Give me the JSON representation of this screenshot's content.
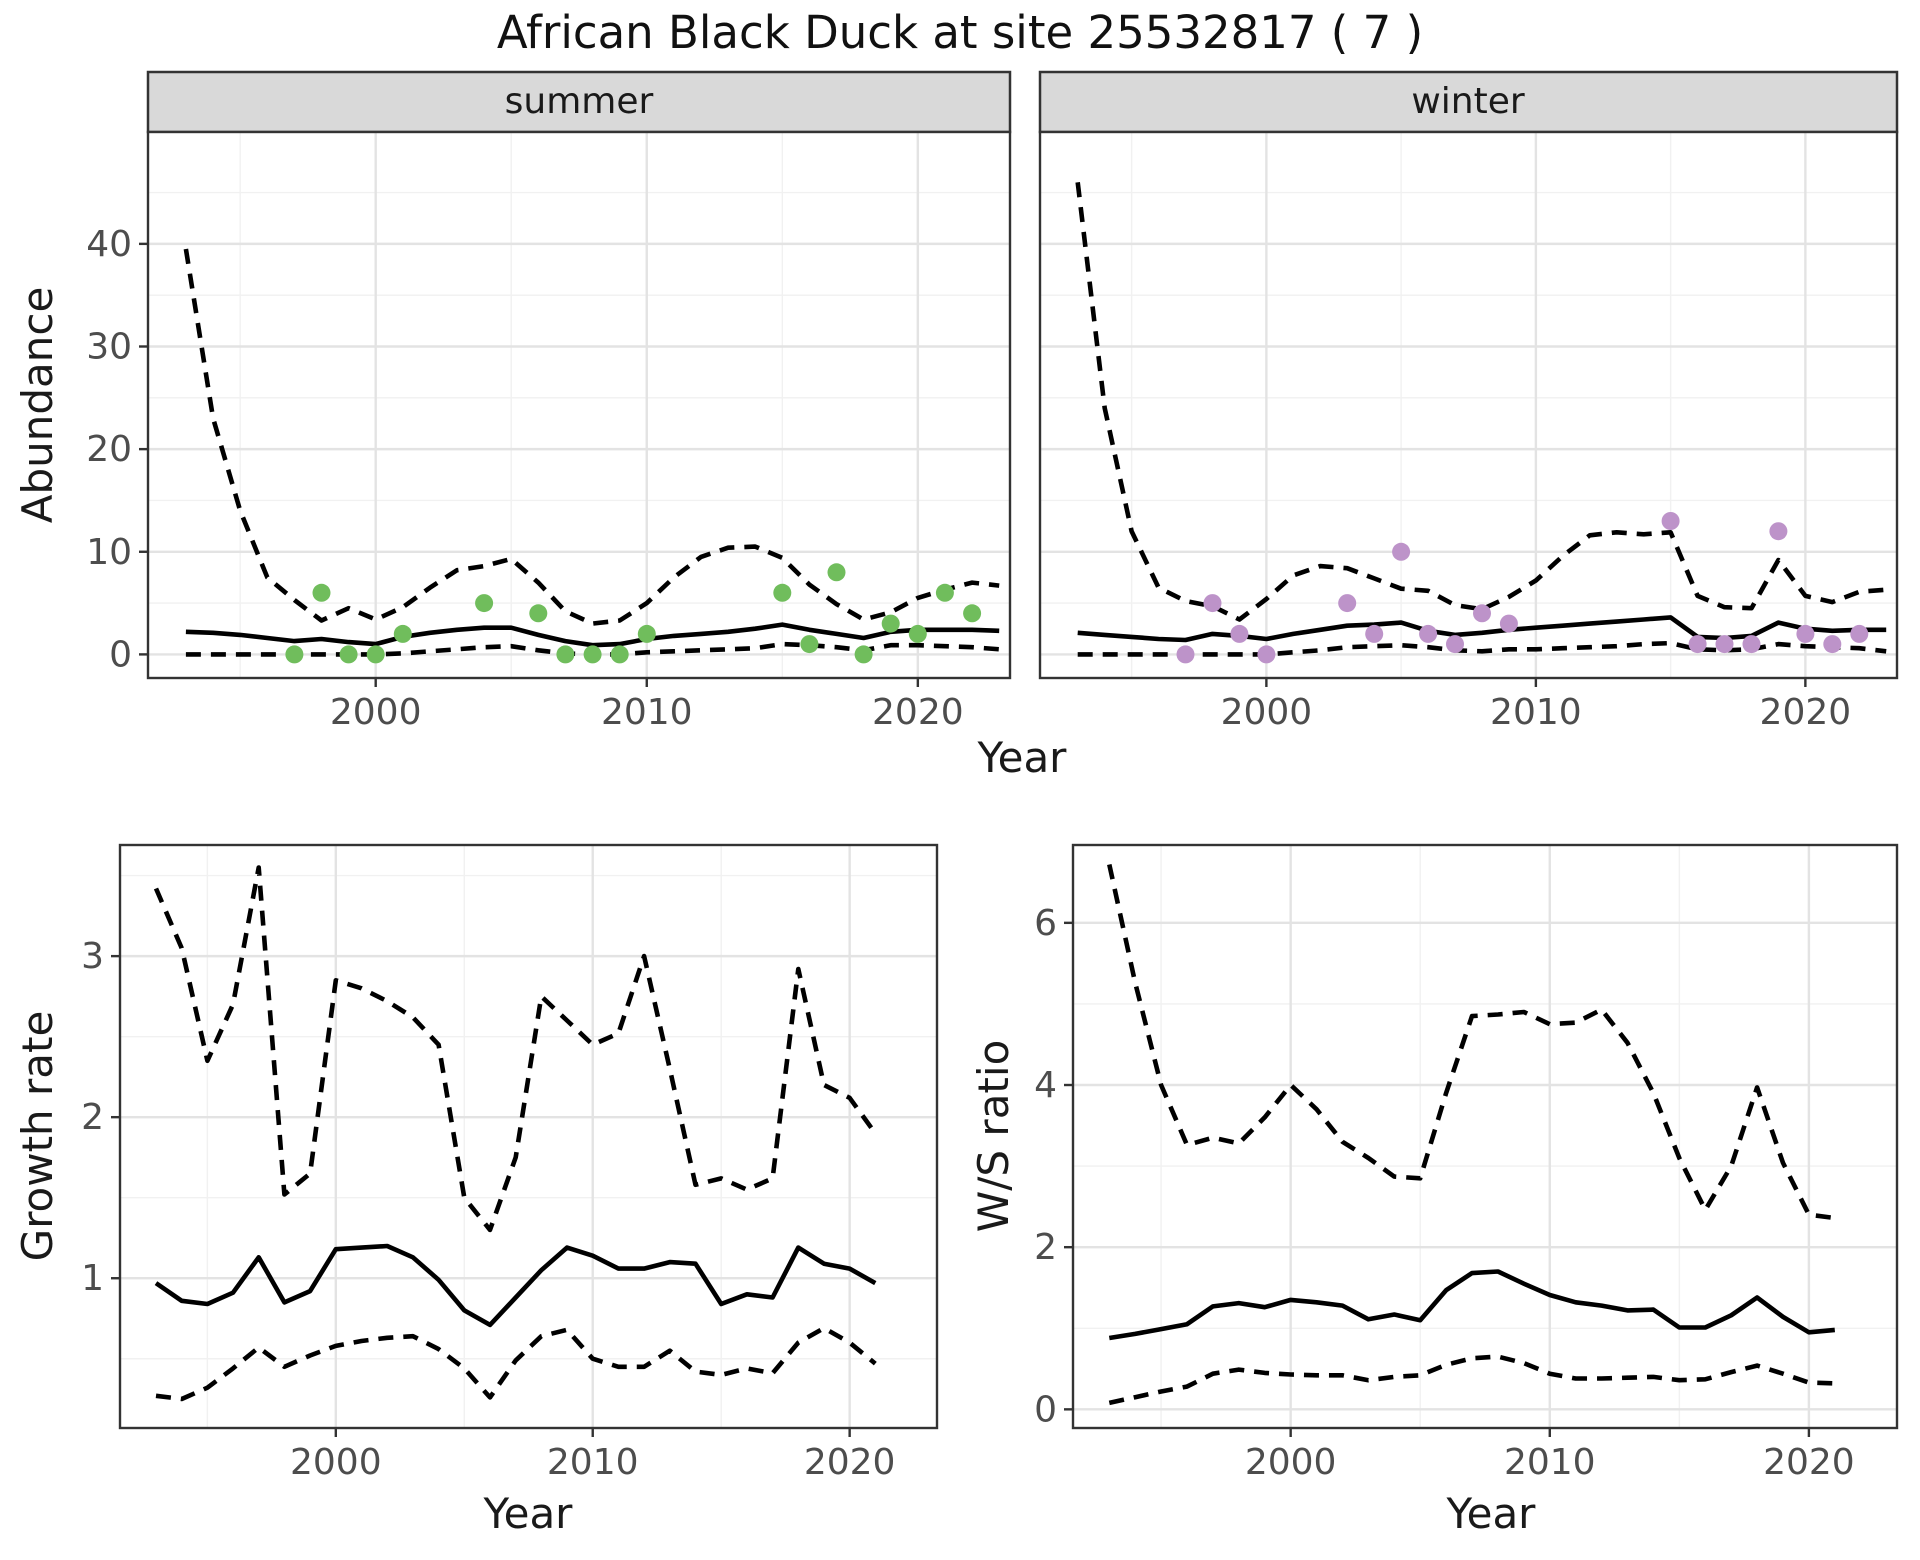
{
  "title": "African Black Duck at site 25532817 ( 7 )",
  "colors": {
    "summer_points": "#70bd5c",
    "winter_points": "#bd93c9",
    "line": "#000000",
    "grid_major": "#e3e3e3",
    "grid_minor": "#f1f1f1",
    "strip_fill": "#d9d9d9",
    "panel_border": "#333333",
    "tick_text": "#4d4d4d",
    "title_text": "#111111"
  },
  "chart_data": {
    "type": "line",
    "title": "African Black Duck at site 25532817 ( 7 )",
    "legend_position": "none",
    "grid": true,
    "panels": [
      {
        "id": "summer",
        "facet": "summer",
        "xlabel": "Year",
        "ylabel": "Abundance",
        "xlim": [
          1991.6,
          2023.4
        ],
        "ylim": [
          -2.3,
          50.9
        ],
        "x_ticks": [
          2000,
          2010,
          2020
        ],
        "x_tick_labels": [
          "2000",
          "2010",
          "2020"
        ],
        "x_minor": [
          1995,
          2005,
          2015
        ],
        "y_ticks": [
          0,
          10,
          20,
          30,
          40
        ],
        "y_tick_labels": [
          "0",
          "10",
          "20",
          "30",
          "40"
        ],
        "y_minor": [
          5,
          15,
          25,
          35,
          45
        ],
        "show_y_labels": true,
        "point_color": "#70bd5c",
        "points": [
          [
            1997,
            0
          ],
          [
            1998,
            6
          ],
          [
            1999,
            0
          ],
          [
            2000,
            0
          ],
          [
            2001,
            2
          ],
          [
            2004,
            5
          ],
          [
            2006,
            4
          ],
          [
            2007,
            0
          ],
          [
            2008,
            0
          ],
          [
            2009,
            0
          ],
          [
            2010,
            2
          ],
          [
            2015,
            6
          ],
          [
            2016,
            1
          ],
          [
            2017,
            8
          ],
          [
            2018,
            0
          ],
          [
            2019,
            3
          ],
          [
            2020,
            2
          ],
          [
            2021,
            6
          ],
          [
            2022,
            4
          ]
        ],
        "series": [
          {
            "name": "lower_ci",
            "style": "dashed",
            "start_year": 1993,
            "values": [
              0,
              0,
              0,
              0,
              0,
              0,
              0,
              0,
              0.1,
              0.3,
              0.5,
              0.7,
              0.8,
              0.4,
              0.1,
              0,
              0,
              0.2,
              0.3,
              0.4,
              0.5,
              0.6,
              1.0,
              0.9,
              0.7,
              0.4,
              0.9,
              0.9,
              0.8,
              0.7,
              0.5
            ]
          },
          {
            "name": "upper_ci",
            "style": "dashed",
            "start_year": 1993,
            "values": [
              39.5,
              23,
              14,
              7.5,
              5.3,
              3.3,
              4.5,
              3.4,
              4.6,
              6.5,
              8.2,
              8.6,
              9.3,
              7.0,
              4.2,
              3.0,
              3.3,
              5.0,
              7.5,
              9.5,
              10.4,
              10.5,
              9.4,
              6.8,
              4.9,
              3.4,
              4.1,
              5.5,
              6.3,
              7.0,
              6.7
            ]
          },
          {
            "name": "median",
            "style": "solid",
            "start_year": 1993,
            "values": [
              2.2,
              2.1,
              1.9,
              1.6,
              1.3,
              1.5,
              1.2,
              1.0,
              1.7,
              2.1,
              2.4,
              2.6,
              2.6,
              1.9,
              1.3,
              0.9,
              1.0,
              1.5,
              1.8,
              2.0,
              2.2,
              2.5,
              2.9,
              2.4,
              2.0,
              1.6,
              2.2,
              2.4,
              2.4,
              2.4,
              2.3
            ]
          }
        ]
      },
      {
        "id": "winter",
        "facet": "winter",
        "xlabel": "Year",
        "ylabel": "Abundance",
        "xlim": [
          1991.6,
          2023.4
        ],
        "ylim": [
          -2.3,
          50.9
        ],
        "x_ticks": [
          2000,
          2010,
          2020
        ],
        "x_tick_labels": [
          "2000",
          "2010",
          "2020"
        ],
        "x_minor": [
          1995,
          2005,
          2015
        ],
        "y_ticks": [
          0,
          10,
          20,
          30,
          40
        ],
        "y_tick_labels": [
          "0",
          "10",
          "20",
          "30",
          "40"
        ],
        "y_minor": [
          5,
          15,
          25,
          35,
          45
        ],
        "show_y_labels": false,
        "point_color": "#bd93c9",
        "points": [
          [
            1997,
            0
          ],
          [
            1998,
            5
          ],
          [
            1999,
            2
          ],
          [
            2000,
            0
          ],
          [
            2003,
            5
          ],
          [
            2004,
            2
          ],
          [
            2005,
            10
          ],
          [
            2006,
            2
          ],
          [
            2007,
            1
          ],
          [
            2008,
            4
          ],
          [
            2009,
            3
          ],
          [
            2015,
            13
          ],
          [
            2016,
            1
          ],
          [
            2017,
            1
          ],
          [
            2018,
            1
          ],
          [
            2019,
            12
          ],
          [
            2020,
            2
          ],
          [
            2021,
            1
          ],
          [
            2022,
            2
          ]
        ],
        "series": [
          {
            "name": "lower_ci",
            "style": "dashed",
            "start_year": 1993,
            "values": [
              0,
              0,
              0,
              0,
              0,
              0,
              0,
              0,
              0.2,
              0.4,
              0.7,
              0.8,
              0.9,
              0.7,
              0.4,
              0.3,
              0.5,
              0.5,
              0.6,
              0.7,
              0.8,
              1.0,
              1.1,
              0.5,
              0.4,
              0.5,
              1.0,
              0.8,
              0.7,
              0.6,
              0.3
            ]
          },
          {
            "name": "upper_ci",
            "style": "dashed",
            "start_year": 1993,
            "values": [
              46,
              24,
              12,
              6.5,
              5.2,
              4.7,
              3.4,
              5.4,
              7.7,
              8.6,
              8.4,
              7.4,
              6.4,
              6.2,
              4.8,
              4.4,
              5.6,
              7.2,
              9.6,
              11.6,
              11.9,
              11.7,
              11.9,
              5.7,
              4.6,
              4.5,
              9.2,
              5.7,
              5.1,
              6.1,
              6.3
            ]
          },
          {
            "name": "median",
            "style": "solid",
            "start_year": 1993,
            "values": [
              2.1,
              1.9,
              1.7,
              1.5,
              1.4,
              2.0,
              1.8,
              1.5,
              2.0,
              2.4,
              2.8,
              2.9,
              3.1,
              2.3,
              1.9,
              2.1,
              2.4,
              2.6,
              2.8,
              3.0,
              3.2,
              3.4,
              3.6,
              1.7,
              1.6,
              1.8,
              3.1,
              2.5,
              2.3,
              2.4,
              2.4
            ]
          }
        ]
      },
      {
        "id": "growth",
        "facet": null,
        "xlabel": "Year",
        "ylabel": "Growth rate",
        "xlim": [
          1991.6,
          2023.4
        ],
        "ylim": [
          0.07,
          3.69
        ],
        "x_ticks": [
          2000,
          2010,
          2020
        ],
        "x_tick_labels": [
          "2000",
          "2010",
          "2020"
        ],
        "x_minor": [
          1995,
          2005,
          2015
        ],
        "y_ticks": [
          1,
          2,
          3
        ],
        "y_tick_labels": [
          "1",
          "2",
          "3"
        ],
        "y_minor": [
          0.5,
          1.5,
          2.5,
          3.5
        ],
        "show_y_labels": true,
        "point_color": null,
        "points": [],
        "series": [
          {
            "name": "lower_ci",
            "style": "dashed",
            "start_year": 1993,
            "values": [
              0.27,
              0.25,
              0.32,
              0.44,
              0.57,
              0.45,
              0.52,
              0.58,
              0.61,
              0.63,
              0.64,
              0.56,
              0.44,
              0.26,
              0.49,
              0.64,
              0.68,
              0.5,
              0.45,
              0.45,
              0.55,
              0.42,
              0.4,
              0.44,
              0.41,
              0.6,
              0.69,
              0.6,
              0.47
            ]
          },
          {
            "name": "upper_ci",
            "style": "dashed",
            "start_year": 1993,
            "values": [
              3.42,
              3.05,
              2.35,
              2.7,
              3.55,
              1.52,
              1.65,
              2.85,
              2.8,
              2.72,
              2.62,
              2.45,
              1.5,
              1.3,
              1.75,
              2.75,
              2.6,
              2.45,
              2.52,
              3.0,
              2.3,
              1.58,
              1.62,
              1.55,
              1.62,
              2.92,
              2.2,
              2.12,
              1.9
            ]
          },
          {
            "name": "median",
            "style": "solid",
            "start_year": 1993,
            "values": [
              0.97,
              0.86,
              0.84,
              0.91,
              1.13,
              0.85,
              0.92,
              1.18,
              1.19,
              1.2,
              1.13,
              0.99,
              0.8,
              0.71,
              0.88,
              1.05,
              1.19,
              1.14,
              1.06,
              1.06,
              1.1,
              1.09,
              0.84,
              0.9,
              0.88,
              1.19,
              1.09,
              1.06,
              0.97
            ]
          }
        ]
      },
      {
        "id": "ws",
        "facet": null,
        "xlabel": "Year",
        "ylabel": "W/S ratio",
        "xlim": [
          1991.6,
          2023.4
        ],
        "ylim": [
          -0.23,
          6.96
        ],
        "x_ticks": [
          2000,
          2010,
          2020
        ],
        "x_tick_labels": [
          "2000",
          "2010",
          "2020"
        ],
        "x_minor": [
          1995,
          2005,
          2015
        ],
        "y_ticks": [
          0,
          2,
          4,
          6
        ],
        "y_tick_labels": [
          "0",
          "2",
          "4",
          "6"
        ],
        "y_minor": [
          1,
          3,
          5
        ],
        "show_y_labels": true,
        "point_color": null,
        "points": [],
        "series": [
          {
            "name": "lower_ci",
            "style": "dashed",
            "start_year": 1993,
            "values": [
              0.08,
              0.15,
              0.22,
              0.28,
              0.44,
              0.49,
              0.45,
              0.43,
              0.42,
              0.42,
              0.36,
              0.4,
              0.42,
              0.55,
              0.63,
              0.65,
              0.57,
              0.44,
              0.38,
              0.38,
              0.39,
              0.4,
              0.36,
              0.37,
              0.46,
              0.54,
              0.44,
              0.33,
              0.32
            ]
          },
          {
            "name": "upper_ci",
            "style": "dashed",
            "start_year": 1993,
            "values": [
              6.72,
              5.26,
              4.0,
              3.26,
              3.35,
              3.28,
              3.6,
              4.0,
              3.7,
              3.3,
              3.1,
              2.87,
              2.85,
              3.9,
              4.85,
              4.87,
              4.9,
              4.75,
              4.77,
              4.93,
              4.52,
              3.9,
              3.1,
              2.46,
              3.0,
              3.97,
              3.04,
              2.4,
              2.36
            ]
          },
          {
            "name": "median",
            "style": "solid",
            "start_year": 1993,
            "values": [
              0.88,
              0.93,
              0.99,
              1.05,
              1.27,
              1.31,
              1.26,
              1.35,
              1.32,
              1.28,
              1.11,
              1.17,
              1.1,
              1.47,
              1.68,
              1.7,
              1.55,
              1.41,
              1.32,
              1.28,
              1.22,
              1.23,
              1.01,
              1.01,
              1.16,
              1.38,
              1.14,
              0.95,
              0.98
            ]
          }
        ]
      }
    ]
  }
}
